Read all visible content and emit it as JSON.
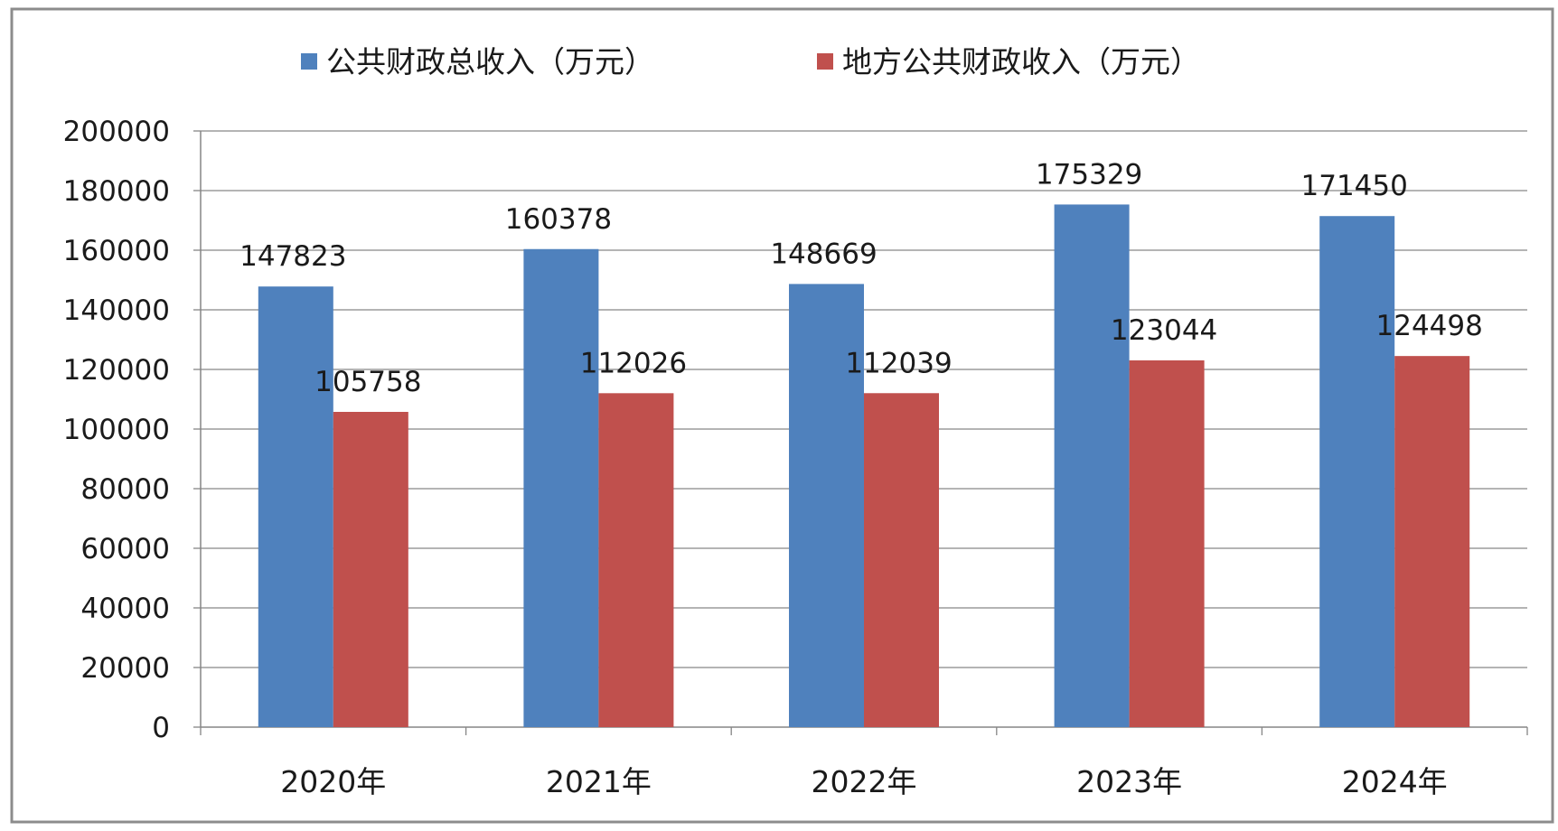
{
  "chart_data": {
    "type": "bar",
    "title": "",
    "xlabel": "",
    "ylabel": "",
    "categories": [
      "2020年",
      "2021年",
      "2022年",
      "2023年",
      "2024年"
    ],
    "series": [
      {
        "name": "公共财政总收入（万元）",
        "color": "#4f81bd",
        "values": [
          147823,
          160378,
          148669,
          175329,
          171450
        ]
      },
      {
        "name": "地方公共财政收入（万元）",
        "color": "#c0504d",
        "values": [
          105758,
          112026,
          112039,
          123044,
          124498
        ]
      }
    ],
    "ylim": [
      0,
      200000
    ],
    "yticks": [
      "0",
      "20000",
      "40000",
      "60000",
      "80000",
      "100000",
      "120000",
      "140000",
      "160000",
      "180000",
      "200000"
    ],
    "grid": true,
    "legend_position": "top",
    "data_labels": true
  }
}
